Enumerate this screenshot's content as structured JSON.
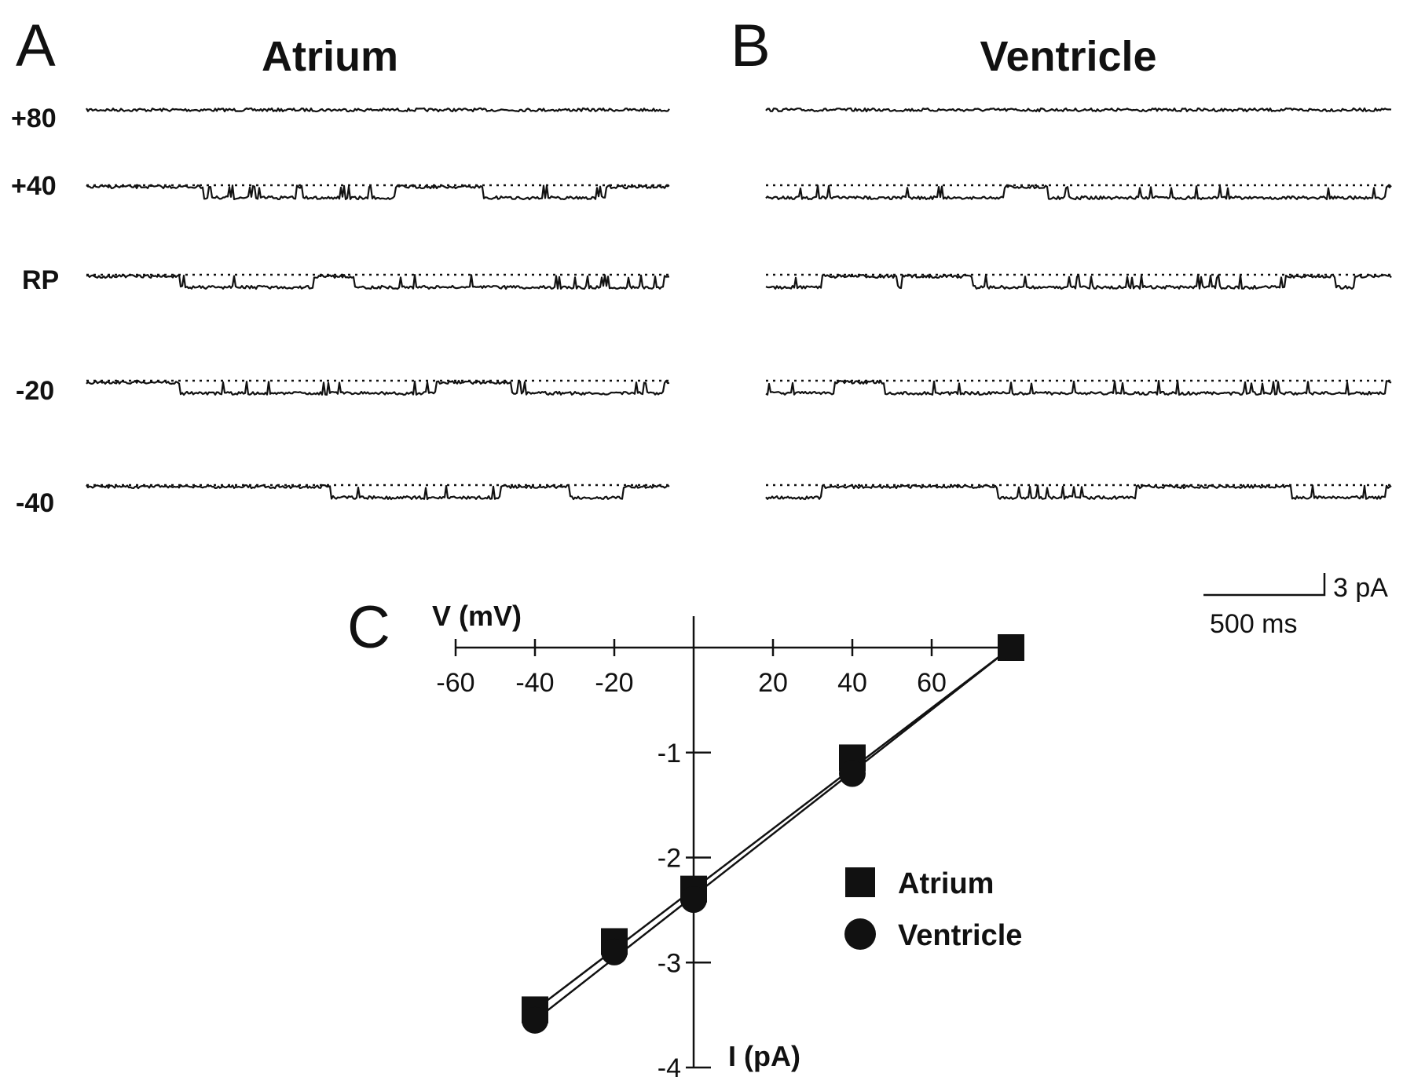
{
  "panels": {
    "a": {
      "letter": "A",
      "title": "Atrium"
    },
    "b": {
      "letter": "B",
      "title": "Ventricle"
    },
    "c": {
      "letter": "C"
    }
  },
  "traces": [
    {
      "label": "+80",
      "atrium": {
        "open_periods": [],
        "dotted": false
      },
      "ventricle": {
        "open_periods": [],
        "dotted": false
      }
    },
    {
      "label": "+40",
      "atrium": {
        "open_periods": [
          [
            0.2,
            0.36
          ],
          [
            0.37,
            0.53
          ],
          [
            0.68,
            0.89
          ]
        ],
        "dotted": true
      },
      "ventricle": {
        "open_periods": [
          [
            0.0,
            0.38
          ],
          [
            0.45,
            0.99
          ]
        ],
        "dotted": true
      }
    },
    {
      "label": "RP",
      "atrium": {
        "open_periods": [
          [
            0.16,
            0.39
          ],
          [
            0.46,
            0.99
          ]
        ],
        "dotted": true
      },
      "ventricle": {
        "open_periods": [
          [
            0.0,
            0.09
          ],
          [
            0.21,
            0.22
          ],
          [
            0.33,
            0.83
          ],
          [
            0.91,
            0.94
          ]
        ],
        "dotted": true
      }
    },
    {
      "label": "-20",
      "atrium": {
        "open_periods": [
          [
            0.16,
            0.6
          ],
          [
            0.73,
            0.99
          ]
        ],
        "dotted": true
      },
      "ventricle": {
        "open_periods": [
          [
            0.0,
            0.11
          ],
          [
            0.19,
            0.99
          ]
        ],
        "dotted": true
      }
    },
    {
      "label": "-40",
      "atrium": {
        "open_periods": [
          [
            0.42,
            0.71
          ],
          [
            0.83,
            0.92
          ]
        ],
        "dotted": true
      },
      "ventricle": {
        "open_periods": [
          [
            0.0,
            0.09
          ],
          [
            0.37,
            0.59
          ],
          [
            0.84,
            0.99
          ]
        ],
        "dotted": true
      }
    }
  ],
  "scale_bar": {
    "current": "3 pA",
    "time": "500 ms"
  },
  "chart_data": {
    "type": "scatter",
    "xlabel": "V (mV)",
    "ylabel": "I (pA)",
    "xlim": [
      -60,
      80
    ],
    "ylim": [
      -4,
      0
    ],
    "x_ticks": [
      -60,
      -40,
      -20,
      20,
      40,
      60
    ],
    "x_tick_labels": [
      "-60",
      "-40",
      "-20",
      "20",
      "40",
      "60"
    ],
    "y_ticks": [
      -1,
      -2,
      -3,
      -4
    ],
    "y_tick_labels": [
      "-1",
      "-2",
      "-3",
      "-4"
    ],
    "legend_position": "right",
    "series": [
      {
        "name": "Atrium",
        "marker": "square",
        "points": [
          [
            -40,
            -3.45
          ],
          [
            -20,
            -2.8
          ],
          [
            0,
            -2.3
          ],
          [
            40,
            -1.05
          ],
          [
            80,
            0
          ]
        ]
      },
      {
        "name": "Ventricle",
        "marker": "circle",
        "points": [
          [
            -40,
            -3.55
          ],
          [
            -20,
            -2.9
          ],
          [
            0,
            -2.4
          ],
          [
            40,
            -1.2
          ],
          [
            80,
            0
          ]
        ]
      }
    ]
  }
}
